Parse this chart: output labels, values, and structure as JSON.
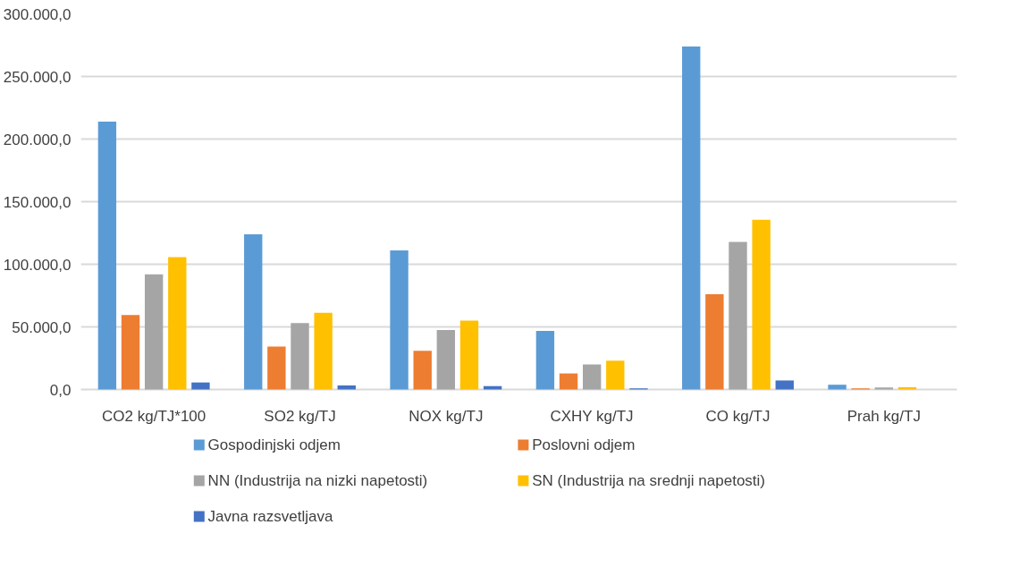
{
  "chart_data": {
    "type": "bar",
    "categories": [
      "CO2 kg/TJ*100",
      "SO2 kg/TJ",
      "NOX kg/TJ",
      "CXHY kg/TJ",
      "CO kg/TJ",
      "Prah kg/TJ"
    ],
    "series": [
      {
        "name": "Gospodinjski odjem",
        "color": "#5b9bd5",
        "values": [
          214000,
          123900,
          111000,
          46800,
          273900,
          3800
        ]
      },
      {
        "name": "Poslovni odjem",
        "color": "#ed7d31",
        "values": [
          59500,
          34200,
          30900,
          12800,
          76100,
          900
        ]
      },
      {
        "name": "NN (Industrija na nizki napetosti)",
        "color": "#a5a5a5",
        "values": [
          91900,
          53100,
          47500,
          20000,
          117800,
          1600
        ]
      },
      {
        "name": "SN (Industrija na srednji napetosti)",
        "color": "#ffc000",
        "values": [
          105800,
          61300,
          55000,
          23000,
          135600,
          1800
        ]
      },
      {
        "name": "Javna razsvetljava",
        "color": "#4472c4",
        "values": [
          5600,
          3200,
          2700,
          900,
          7200,
          0
        ]
      }
    ],
    "ylim": [
      0,
      300000
    ],
    "yticks": [
      {
        "value": 0,
        "label": "0,0"
      },
      {
        "value": 50000,
        "label": "50.000,0"
      },
      {
        "value": 100000,
        "label": "100.000,0"
      },
      {
        "value": 150000,
        "label": "150.000,0"
      },
      {
        "value": 200000,
        "label": "200.000,0"
      },
      {
        "value": 250000,
        "label": "250.000,0"
      },
      {
        "value": 300000,
        "label": "300.000,0"
      }
    ],
    "grid": "y",
    "legend": "bottom"
  }
}
